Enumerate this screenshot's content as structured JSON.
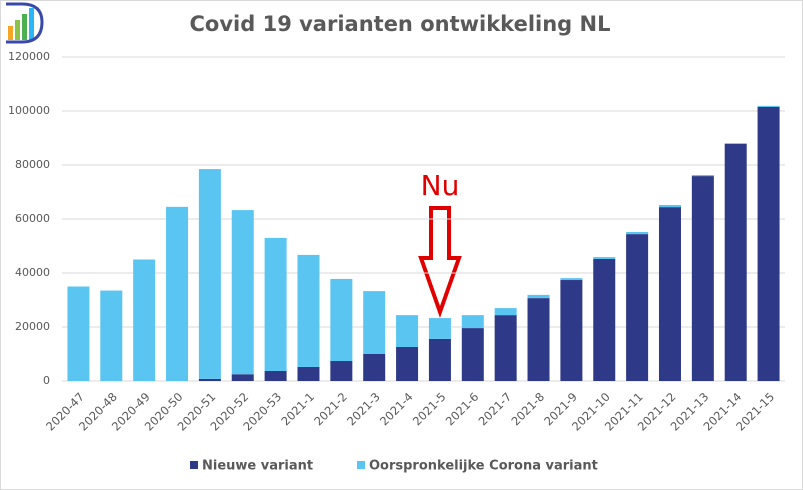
{
  "chart_data": {
    "type": "stacked_bar",
    "title": "Covid 19 varianten ontwikkeling NL",
    "annotation": "Nu",
    "categories": [
      "2020-47",
      "2020-48",
      "2020-49",
      "2020-50",
      "2020-51",
      "2020-52",
      "2020-53",
      "2021-1",
      "2021-2",
      "2021-3",
      "2021-4",
      "2021-5",
      "2021-6",
      "2021-7",
      "2021-8",
      "2021-9",
      "2021-10",
      "2021-11",
      "2021-12",
      "2021-13",
      "2021-14",
      "2021-15"
    ],
    "series": [
      {
        "name": "Nieuwe variant",
        "color": "#2e3a87",
        "values": [
          0,
          0,
          0,
          0,
          800,
          2500,
          3700,
          5200,
          7400,
          10000,
          12600,
          15600,
          19600,
          24400,
          30700,
          37400,
          45200,
          54400,
          64400,
          75900,
          87800,
          101500
        ]
      },
      {
        "name": "Oorspronkelijke Corona variant",
        "color": "#5bc5f2",
        "values": [
          35000,
          33500,
          45000,
          64500,
          77700,
          60800,
          49300,
          41500,
          30400,
          23300,
          11800,
          7700,
          4800,
          2600,
          1200,
          700,
          700,
          800,
          800,
          400,
          300,
          400
        ]
      }
    ],
    "ylim": [
      0,
      120000
    ],
    "yticks": [
      0,
      20000,
      40000,
      60000,
      80000,
      100000,
      120000
    ],
    "grid": true,
    "legend": "bottom"
  }
}
